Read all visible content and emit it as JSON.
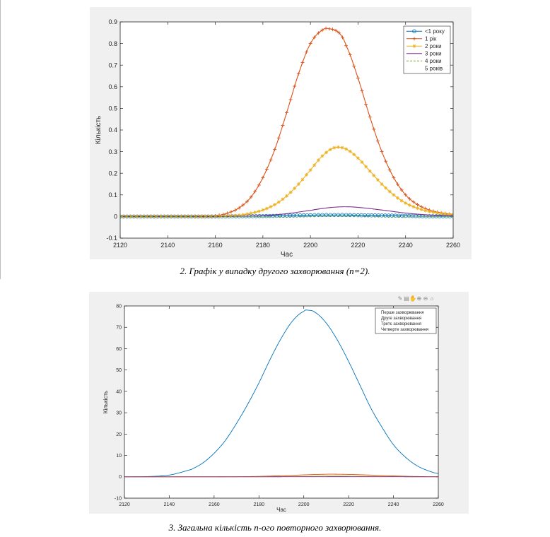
{
  "captions": {
    "chart1": "2. Графік у випадку другого захворювання (n=2).",
    "chart2": "3. Загальна кількість n-ого повторного захворювання."
  },
  "toolbar_icons": [
    "brush-icon",
    "save-icon",
    "pan-icon",
    "zoom-in-icon",
    "zoom-out-icon",
    "home-icon"
  ],
  "chart_data": [
    {
      "type": "line",
      "title": "",
      "xlabel": "Час",
      "ylabel": "Кількість",
      "xlim": [
        2120,
        2260
      ],
      "ylim": [
        -0.1,
        0.9
      ],
      "xticks": [
        2120,
        2140,
        2160,
        2180,
        2200,
        2220,
        2240,
        2260
      ],
      "yticks": [
        -0.1,
        0,
        0.1,
        0.2,
        0.3,
        0.4,
        0.5,
        0.6,
        0.7,
        0.8,
        0.9
      ],
      "legend_position": "top-right",
      "series": [
        {
          "name": "<1 року",
          "color": "#0072bd",
          "marker": "circle",
          "x": [
            2120,
            2130,
            2140,
            2150,
            2160,
            2170,
            2180,
            2190,
            2200,
            2205,
            2210,
            2215,
            2220,
            2230,
            2240,
            2250,
            2260
          ],
          "y": [
            0,
            0,
            0,
            0,
            0,
            0.001,
            0.002,
            0.004,
            0.006,
            0.007,
            0.007,
            0.007,
            0.006,
            0.005,
            0.003,
            0.001,
            0.001
          ]
        },
        {
          "name": "1 рік",
          "color": "#d95319",
          "marker": "plus",
          "x": [
            2120,
            2130,
            2140,
            2150,
            2155,
            2160,
            2165,
            2170,
            2175,
            2180,
            2185,
            2190,
            2195,
            2200,
            2205,
            2208,
            2212,
            2215,
            2220,
            2225,
            2230,
            2235,
            2240,
            2245,
            2250,
            2255,
            2260
          ],
          "y": [
            0,
            0,
            0,
            0,
            0,
            0.003,
            0.015,
            0.04,
            0.09,
            0.18,
            0.31,
            0.48,
            0.66,
            0.8,
            0.862,
            0.868,
            0.85,
            0.79,
            0.64,
            0.46,
            0.3,
            0.18,
            0.1,
            0.055,
            0.03,
            0.017,
            0.01
          ]
        },
        {
          "name": "2 роки",
          "color": "#edb120",
          "marker": "asterisk",
          "x": [
            2120,
            2130,
            2140,
            2150,
            2160,
            2165,
            2170,
            2175,
            2180,
            2185,
            2190,
            2195,
            2200,
            2205,
            2210,
            2215,
            2220,
            2225,
            2230,
            2235,
            2240,
            2245,
            2250,
            2255,
            2260
          ],
          "y": [
            0,
            0,
            0,
            0,
            0,
            0.002,
            0.006,
            0.015,
            0.03,
            0.055,
            0.095,
            0.15,
            0.215,
            0.28,
            0.318,
            0.312,
            0.27,
            0.21,
            0.15,
            0.1,
            0.062,
            0.038,
            0.023,
            0.014,
            0.008
          ]
        },
        {
          "name": "3 роки",
          "color": "#7e2f8e",
          "marker": "none",
          "x": [
            2120,
            2140,
            2160,
            2170,
            2180,
            2190,
            2200,
            2205,
            2210,
            2215,
            2220,
            2230,
            2240,
            2250,
            2260
          ],
          "y": [
            0,
            0,
            0,
            0.001,
            0.004,
            0.013,
            0.028,
            0.037,
            0.043,
            0.045,
            0.042,
            0.03,
            0.016,
            0.007,
            0.003
          ]
        },
        {
          "name": "4 роки",
          "color": "#77ac30",
          "marker": "none",
          "dash": true,
          "x": [
            2120,
            2180,
            2200,
            2215,
            2230,
            2260
          ],
          "y": [
            0,
            0,
            0.001,
            0.002,
            0.001,
            0
          ]
        },
        {
          "name": "5 років",
          "color": "#4dbeee",
          "marker": "none",
          "hidden": true,
          "x": [
            2120,
            2260
          ],
          "y": [
            0,
            0
          ]
        }
      ]
    },
    {
      "type": "line",
      "title": "",
      "xlabel": "Час",
      "ylabel": "Кількість",
      "xlim": [
        2120,
        2260
      ],
      "ylim": [
        -10,
        80
      ],
      "xticks": [
        2120,
        2140,
        2160,
        2180,
        2200,
        2220,
        2240,
        2260
      ],
      "yticks": [
        -10,
        0,
        10,
        20,
        30,
        40,
        50,
        60,
        70,
        80
      ],
      "legend_position": "top-right",
      "series": [
        {
          "name": "Перше захворювання",
          "color": "#0072bd",
          "x": [
            2120,
            2130,
            2140,
            2150,
            2155,
            2160,
            2165,
            2170,
            2175,
            2180,
            2185,
            2190,
            2195,
            2200,
            2202,
            2205,
            2210,
            2215,
            2220,
            2225,
            2230,
            2235,
            2240,
            2245,
            2250,
            2255,
            2260
          ],
          "y": [
            0,
            0.1,
            0.8,
            3.5,
            6.5,
            11,
            17,
            25,
            34,
            44,
            55,
            65,
            73,
            77.5,
            78,
            77,
            72,
            64,
            54,
            43,
            32,
            23,
            15,
            9.5,
            5.5,
            3,
            1.5
          ]
        },
        {
          "name": "Друге захворювання",
          "color": "#d95319",
          "x": [
            2120,
            2160,
            2170,
            2180,
            2190,
            2200,
            2210,
            2215,
            2220,
            2230,
            2240,
            2250,
            2260
          ],
          "y": [
            0,
            0,
            0.05,
            0.2,
            0.5,
            0.9,
            1.2,
            1.2,
            1.1,
            0.8,
            0.4,
            0.15,
            0.05
          ]
        },
        {
          "name": "Третє захворювання",
          "color": "#edb120",
          "x": [
            2120,
            2180,
            2200,
            2210,
            2220,
            2240,
            2260
          ],
          "y": [
            0,
            0.05,
            0.2,
            0.35,
            0.3,
            0.1,
            0.02
          ]
        },
        {
          "name": "Четверте захворювання",
          "color": "#7e2f8e",
          "x": [
            2120,
            2180,
            2200,
            2215,
            2230,
            2260
          ],
          "y": [
            0,
            0,
            0.03,
            0.05,
            0.03,
            0
          ]
        }
      ]
    }
  ]
}
